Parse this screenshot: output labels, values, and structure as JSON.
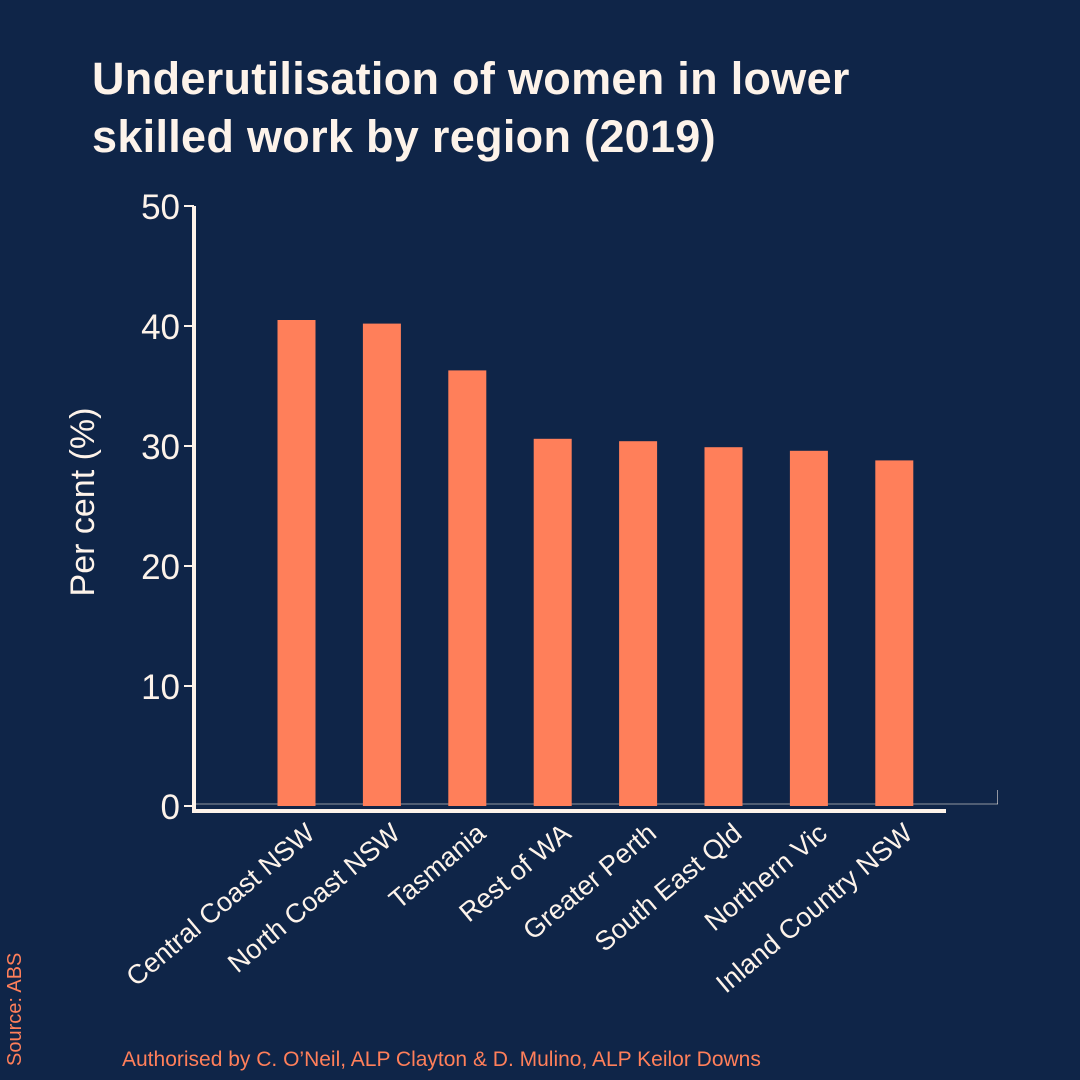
{
  "colors": {
    "background": "#0f2548",
    "bar": "#ff7f5a",
    "text": "#fdf3ea",
    "accent": "#ff7f5a"
  },
  "chart_data": {
    "type": "bar",
    "title_lines": [
      "Underutilisation of women in lower",
      "skilled work by region (2019)"
    ],
    "ylabel": "Per cent (%)",
    "xlabel": "",
    "ylim": [
      0,
      50
    ],
    "yticks": [
      0,
      10,
      20,
      30,
      40,
      50
    ],
    "grid": false,
    "categories": [
      "Central Coast NSW",
      "North Coast NSW",
      "Tasmania",
      "Rest of WA",
      "Greater Perth",
      "South East Qld",
      "Northern Vic",
      "Inland Country NSW"
    ],
    "values": [
      40.5,
      40.2,
      36.3,
      30.6,
      30.4,
      29.9,
      29.6,
      28.8
    ]
  },
  "source": "Source: ABS",
  "footer": "Authorised by C. O’Neil, ALP Clayton & D. Mulino, ALP Keilor Downs"
}
